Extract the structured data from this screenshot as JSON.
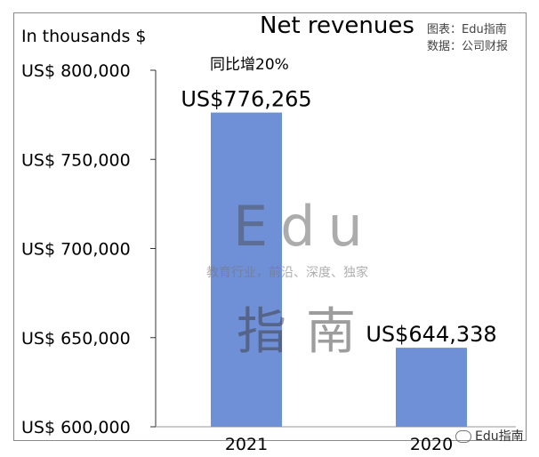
{
  "header": {
    "unit_label": "In thousands $",
    "title": "Net revenues",
    "source_line1": "图表：Edu指南",
    "source_line2": "数据：公司财报"
  },
  "annotation": "同比增20%",
  "watermark": {
    "logo": "Edu",
    "tagline": "教育行业，前沿、深度、独家",
    "chinese": "指南"
  },
  "footer": "Edu指南",
  "chart_data": {
    "type": "bar",
    "title": "Net revenues",
    "ylabel": "In thousands $",
    "categories": [
      "2021",
      "2020"
    ],
    "values": [
      776265,
      644338
    ],
    "value_labels": [
      "US$776,265",
      "US$644,338"
    ],
    "ylim": [
      600000,
      800000
    ],
    "yticks": [
      600000,
      650000,
      700000,
      750000,
      800000
    ],
    "ytick_labels": [
      "US$  600,000",
      "US$  650,000",
      "US$  700,000",
      "US$  750,000",
      "US$  800,000"
    ],
    "bar_color": "#6f8fd6",
    "grid": false,
    "legend": "none"
  }
}
